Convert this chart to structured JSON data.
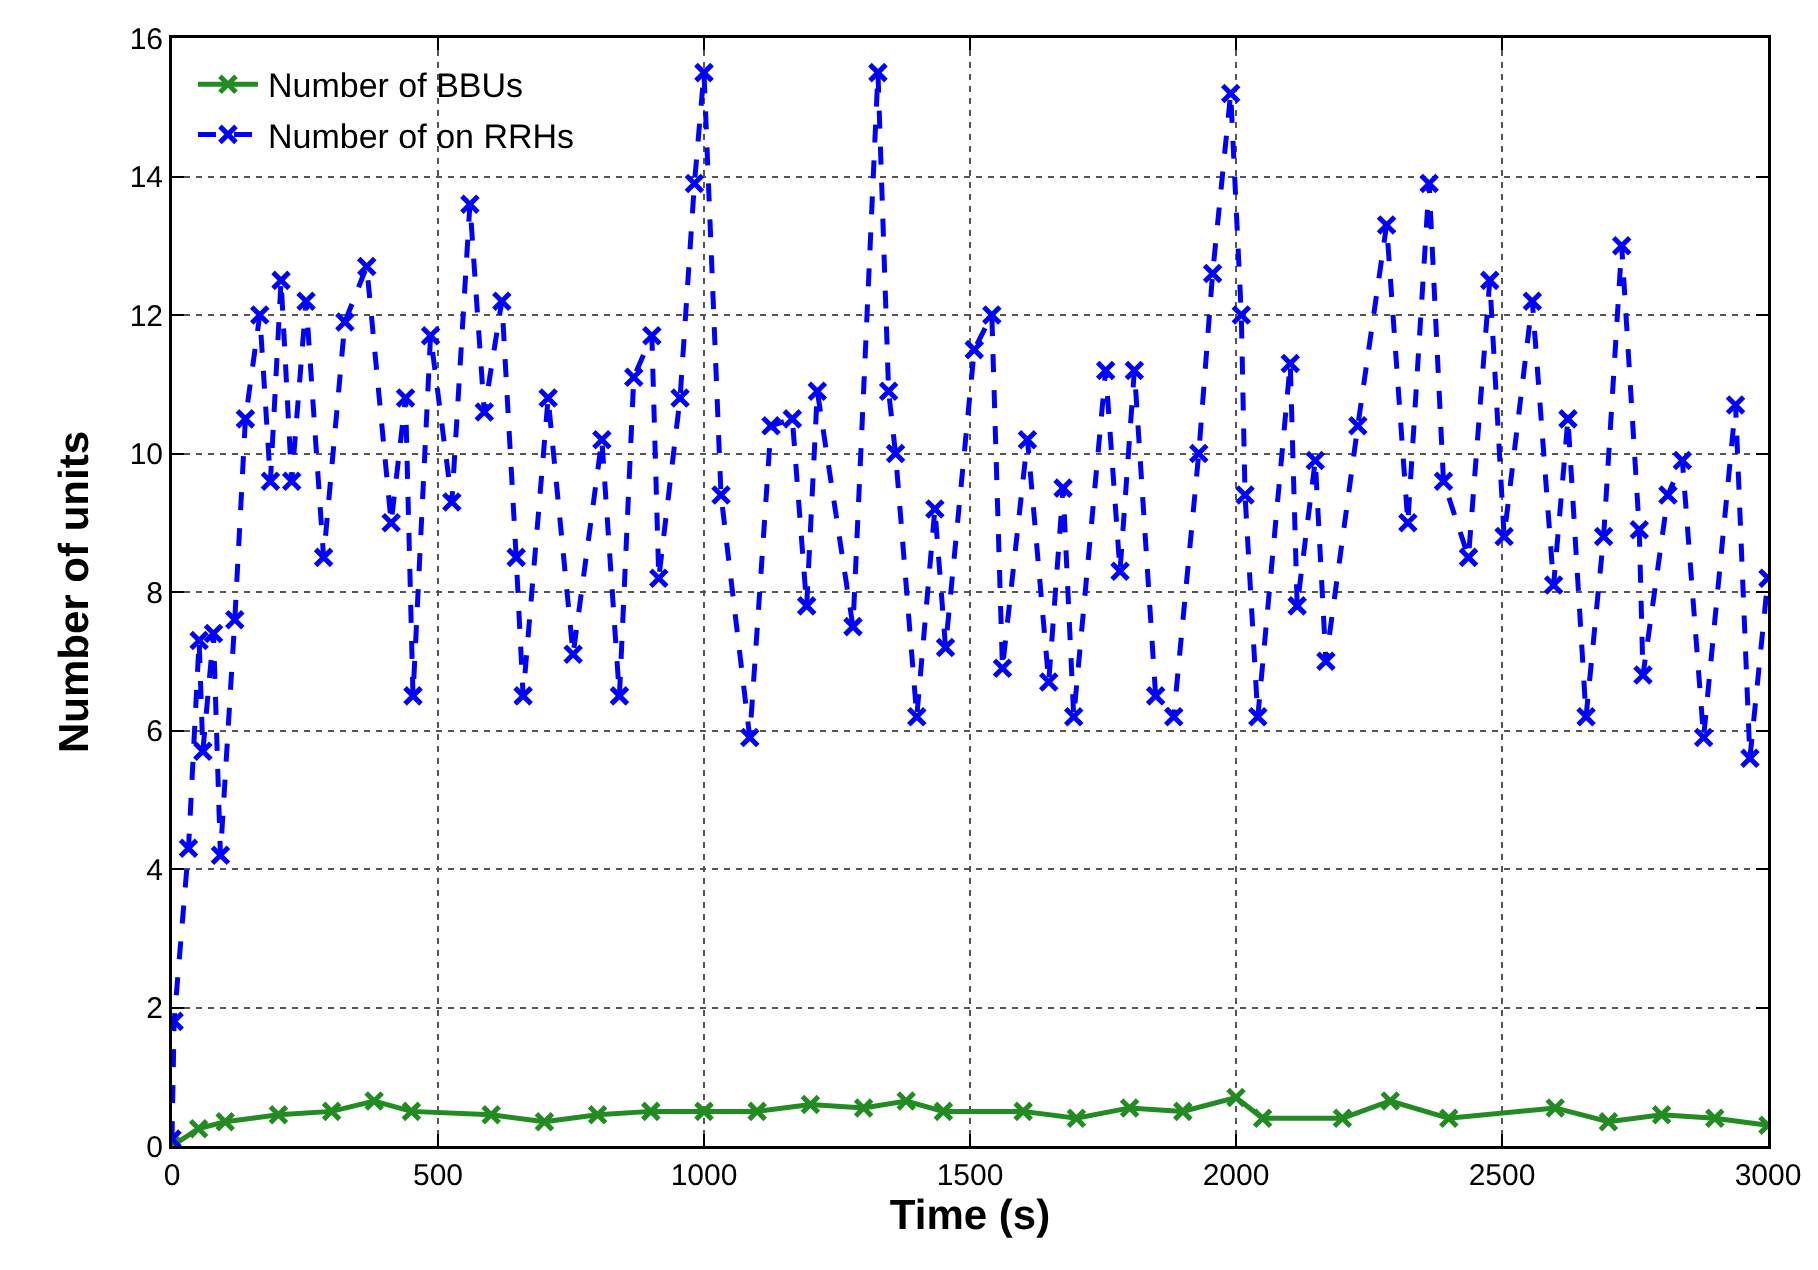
{
  "chart_data": {
    "type": "line",
    "xlabel": "Time (s)",
    "ylabel": "Number of units",
    "xlim": [
      0,
      3000
    ],
    "xticks": [
      0,
      500,
      1000,
      1500,
      2000,
      2500,
      3000
    ],
    "ylim": [
      0,
      16
    ],
    "yticks": [
      0,
      2,
      4,
      6,
      8,
      10,
      12,
      14,
      16
    ],
    "grid": true,
    "legend": "top left",
    "marker": "cross",
    "series": [
      {
        "name": "Number of BBUs",
        "color": "#228b22",
        "line_style": "solid",
        "x": [
          0,
          50,
          100,
          200,
          300,
          380,
          450,
          600,
          700,
          800,
          900,
          1000,
          1100,
          1200,
          1300,
          1380,
          1450,
          1600,
          1700,
          1800,
          1900,
          2000,
          2050,
          2200,
          2290,
          2400,
          2600,
          2700,
          2800,
          2900,
          3000
        ],
        "values": [
          0,
          0.25,
          0.35,
          0.45,
          0.5,
          0.65,
          0.5,
          0.45,
          0.35,
          0.45,
          0.5,
          0.5,
          0.5,
          0.6,
          0.55,
          0.65,
          0.5,
          0.5,
          0.4,
          0.55,
          0.5,
          0.7,
          0.4,
          0.4,
          0.65,
          0.4,
          0.55,
          0.35,
          0.45,
          0.4,
          0.3
        ]
      },
      {
        "name": "Number of on RRHs",
        "color": "#0000ff",
        "line_style": "dashed",
        "x": [
          0,
          4,
          31,
          51,
          58,
          78,
          91,
          118,
          138,
          165,
          185,
          205,
          225,
          252,
          285,
          325,
          366,
          412,
          439,
          453,
          486,
          526,
          560,
          587,
          620,
          647,
          660,
          707,
          754,
          808,
          841,
          868,
          902,
          915,
          955,
          982,
          1000,
          1032,
          1086,
          1126,
          1166,
          1193,
          1213,
          1280,
          1327,
          1347,
          1360,
          1400,
          1434,
          1454,
          1508,
          1541,
          1561,
          1608,
          1648,
          1675,
          1695,
          1755,
          1782,
          1809,
          1849,
          1883,
          1930,
          1956,
          1990,
          2010,
          2017,
          2041,
          2102,
          2115,
          2149,
          2169,
          2229,
          2283,
          2323,
          2363,
          2390,
          2437,
          2477,
          2504,
          2557,
          2597,
          2624,
          2658,
          2691,
          2725,
          2758,
          2765,
          2812,
          2839,
          2879,
          2939,
          2966,
          3000
        ],
        "values": [
          0.1,
          1.8,
          4.3,
          7.3,
          5.7,
          7.4,
          4.2,
          7.6,
          10.5,
          12,
          9.6,
          12.5,
          9.6,
          12.2,
          8.5,
          11.9,
          12.7,
          9,
          10.8,
          6.5,
          11.7,
          9.3,
          13.6,
          10.6,
          12.2,
          8.5,
          6.5,
          10.8,
          7.1,
          10.2,
          6.5,
          11.1,
          11.7,
          8.2,
          10.8,
          13.9,
          15.5,
          9.4,
          5.9,
          10.4,
          10.5,
          7.8,
          10.9,
          7.5,
          15.5,
          10.9,
          10,
          6.2,
          9.2,
          7.2,
          11.5,
          12,
          6.9,
          10.2,
          6.7,
          9.5,
          6.2,
          11.2,
          8.3,
          11.2,
          6.5,
          6.2,
          10,
          12.6,
          15.2,
          12,
          9.4,
          6.2,
          11.3,
          7.8,
          9.9,
          7,
          10.4,
          13.3,
          9,
          13.9,
          9.6,
          8.5,
          12.5,
          8.8,
          12.2,
          8.1,
          10.5,
          6.2,
          8.8,
          13,
          8.9,
          6.8,
          9.4,
          9.9,
          5.9,
          10.7,
          5.6,
          8.2
        ]
      }
    ]
  }
}
